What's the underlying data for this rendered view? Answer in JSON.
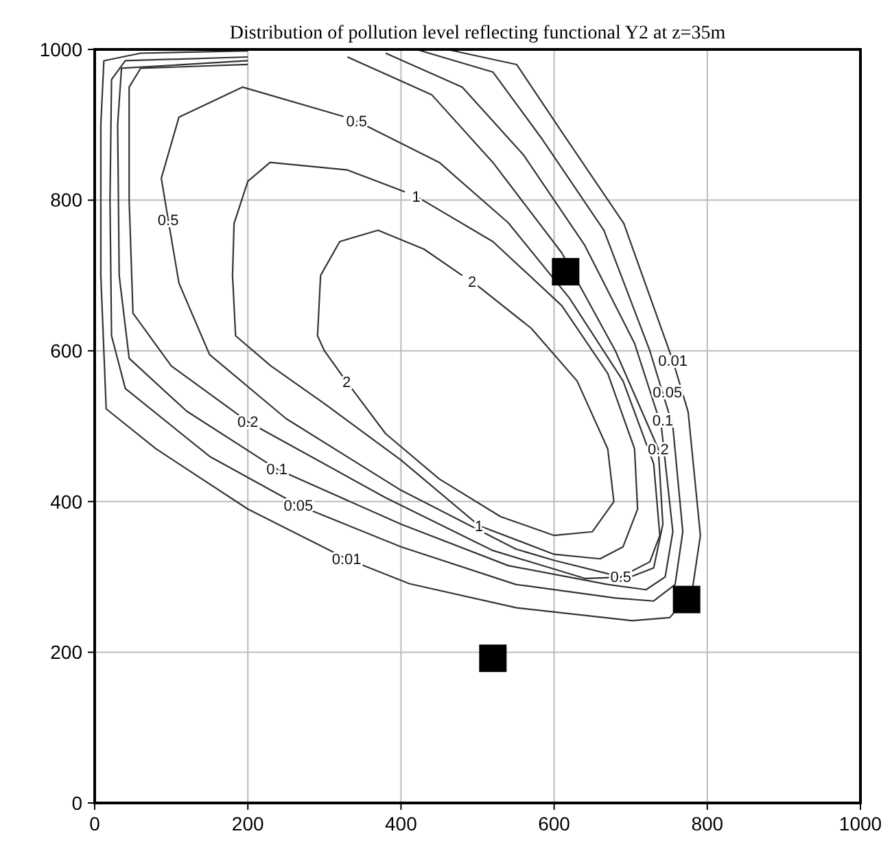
{
  "chart_data": {
    "type": "line",
    "title": "Distribution of pollution level reflecting functional Y2 at z=35m",
    "xlim": [
      0,
      1000
    ],
    "ylim": [
      0,
      1000
    ],
    "xticks": [
      0,
      200,
      400,
      600,
      800,
      1000
    ],
    "yticks": [
      0,
      200,
      400,
      600,
      800,
      1000
    ],
    "grid": true,
    "line_style": "solid",
    "series": [
      {
        "color": "#333333",
        "x": [
          200,
          60,
          12,
          8,
          8,
          15,
          80,
          200,
          329,
          411,
          551,
          702,
          751,
          780,
          791,
          775,
          755,
          691,
          611,
          551,
          460
        ],
        "values": [
          998,
          995,
          985,
          900,
          700,
          523,
          470,
          390,
          324,
          291,
          259,
          242,
          246,
          280,
          355,
          519,
          587,
          769,
          889,
          980,
          1000
        ]
      },
      {
        "color": "#333333",
        "x": [
          200,
          40,
          22,
          20,
          22,
          40,
          150,
          266,
          400,
          550,
          680,
          730,
          758,
          768,
          755,
          725,
          665,
          585,
          520,
          420
        ],
        "values": [
          990,
          985,
          960,
          800,
          620,
          550,
          460,
          395,
          340,
          290,
          272,
          268,
          290,
          360,
          500,
          600,
          760,
          880,
          970,
          1000
        ]
      },
      {
        "color": "#333333",
        "x": [
          200,
          35,
          30,
          32,
          45,
          120,
          238,
          400,
          540,
          670,
          720,
          745,
          755,
          740,
          705,
          640,
          560,
          480,
          380
        ],
        "values": [
          985,
          975,
          900,
          700,
          590,
          520,
          443,
          370,
          315,
          290,
          283,
          300,
          360,
          500,
          610,
          740,
          860,
          950,
          995
        ]
      },
      {
        "color": "#333333",
        "x": [
          200,
          60,
          45,
          45,
          50,
          100,
          200,
          380,
          520,
          640,
          700,
          730,
          742,
          736,
          680,
          610,
          520,
          440,
          330
        ],
        "values": [
          980,
          975,
          950,
          800,
          650,
          580,
          506,
          405,
          335,
          298,
          300,
          312,
          370,
          470,
          600,
          730,
          850,
          940,
          990
        ]
      },
      {
        "color": "#333333",
        "x": [
          342,
          450,
          540,
          620,
          690,
          730,
          738,
          725,
          687,
          600,
          550,
          400,
          250,
          150,
          110,
          96,
          87,
          110,
          193,
          325
        ],
        "values": [
          905,
          850,
          770,
          670,
          560,
          450,
          355,
          320,
          300,
          322,
          337,
          415,
          510,
          595,
          690,
          774,
          829,
          910,
          950,
          911
        ]
      },
      {
        "color": "#333333",
        "x": [
          420,
          520,
          610,
          670,
          705,
          709,
          690,
          660,
          600,
          502,
          400,
          300,
          230,
          184,
          180,
          182,
          200,
          229,
          330,
          405
        ],
        "values": [
          805,
          745,
          660,
          570,
          470,
          390,
          340,
          324,
          330,
          368,
          455,
          530,
          580,
          620,
          700,
          769,
          825,
          850,
          840,
          811
        ]
      },
      {
        "color": "#333333",
        "x": [
          493,
          570,
          630,
          670,
          678,
          650,
          600,
          530,
          450,
          380,
          329,
          300,
          291,
          295,
          320,
          370,
          430,
          480
        ],
        "values": [
          692,
          630,
          560,
          470,
          400,
          360,
          355,
          380,
          430,
          490,
          559,
          600,
          620,
          700,
          745,
          760,
          735,
          700
        ]
      },
      {
        "type": "scatter",
        "marker": "square",
        "color": "#000000",
        "x": [
          615,
          773,
          520
        ],
        "values": [
          705,
          270,
          192
        ]
      }
    ],
    "annotations": [
      {
        "text": "0.5",
        "x": 342,
        "y": 905
      },
      {
        "text": "0.5",
        "x": 96,
        "y": 774
      },
      {
        "text": "0.5",
        "x": 687,
        "y": 300
      },
      {
        "text": "1",
        "x": 420,
        "y": 805
      },
      {
        "text": "1",
        "x": 502,
        "y": 368
      },
      {
        "text": "2",
        "x": 493,
        "y": 692
      },
      {
        "text": "2",
        "x": 329,
        "y": 559
      },
      {
        "text": "0.2",
        "x": 200,
        "y": 506
      },
      {
        "text": "0.2",
        "x": 736,
        "y": 470
      },
      {
        "text": "0.1",
        "x": 238,
        "y": 443
      },
      {
        "text": "0.05",
        "x": 266,
        "y": 395
      },
      {
        "text": "0.01",
        "x": 329,
        "y": 324
      },
      {
        "text": "0.01",
        "x": 755,
        "y": 587
      },
      {
        "text": "0.05",
        "x": 748,
        "y": 545
      },
      {
        "text": "0.1",
        "x": 742,
        "y": 508
      }
    ]
  }
}
